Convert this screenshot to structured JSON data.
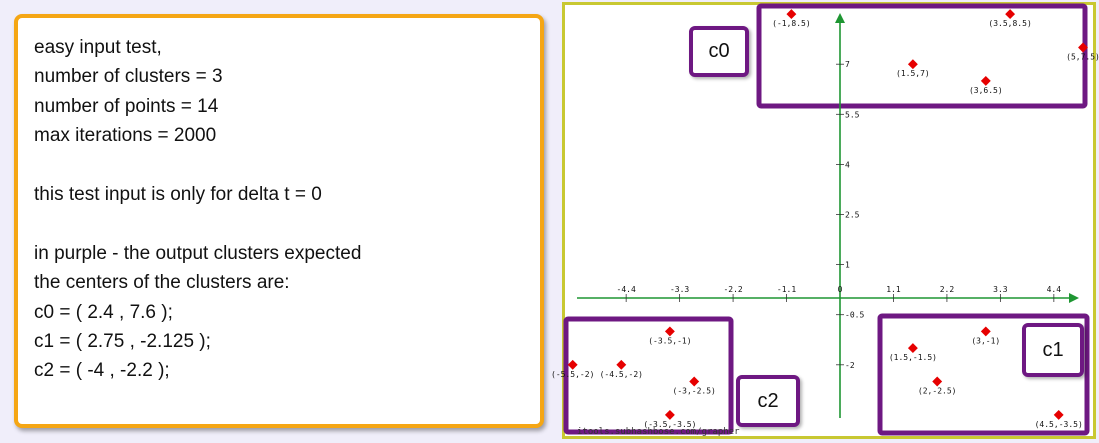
{
  "note": {
    "lines": [
      "easy input test,",
      "number of clusters = 3",
      "number of points = 14",
      "max iterations = 2000",
      "",
      "this test input is only for delta t = 0",
      "",
      "in purple - the output clusters expected",
      "the centers of the clusters are:",
      "c0 = ( 2.4 , 7.6 );",
      "c1 = ( 2.75 , -2.125 );",
      "c2 = ( -4 , -2.2 );"
    ]
  },
  "colors": {
    "note_border": "#f5a614",
    "plot_border": "#c8c832",
    "axis": "#1e9632",
    "point": "#e60000",
    "cluster_box": "#6e1882"
  },
  "chart_data": {
    "type": "scatter",
    "x_ticks": [
      "-4.4",
      "-3.3",
      "-2.2",
      "-1.1",
      "0",
      "1.1",
      "2.2",
      "3.3",
      "4.4"
    ],
    "x_tick_values": [
      -4.4,
      -3.3,
      -2.2,
      -1.1,
      0,
      1.1,
      2.2,
      3.3,
      4.4
    ],
    "y_ticks": [
      "7",
      "5.5",
      "4",
      "2.5",
      "1",
      "-0.5",
      "-2"
    ],
    "y_tick_values": [
      7,
      5.5,
      4,
      2.5,
      1,
      -0.5,
      -2
    ],
    "points": [
      {
        "x": -1,
        "y": 8.5,
        "label": "(-1,8.5)"
      },
      {
        "x": 3.5,
        "y": 8.5,
        "label": "(3.5,8.5)"
      },
      {
        "x": 5,
        "y": 7.5,
        "label": "(5,7.5)"
      },
      {
        "x": 1.5,
        "y": 7,
        "label": "(1.5,7)"
      },
      {
        "x": 3,
        "y": 6.5,
        "label": "(3,6.5)"
      },
      {
        "x": -3.5,
        "y": -1,
        "label": "(-3.5,-1)"
      },
      {
        "x": -5.5,
        "y": -2,
        "label": "(-5.5,-2)"
      },
      {
        "x": -4.5,
        "y": -2,
        "label": "(-4.5,-2)"
      },
      {
        "x": -3,
        "y": -2.5,
        "label": "(-3,-2.5)"
      },
      {
        "x": -3.5,
        "y": -3.5,
        "label": "(-3.5,-3.5)"
      },
      {
        "x": 3,
        "y": -1,
        "label": "(3,-1)"
      },
      {
        "x": 1.5,
        "y": -1.5,
        "label": "(1.5,-1.5)"
      },
      {
        "x": 2,
        "y": -2.5,
        "label": "(2,-2.5)"
      },
      {
        "x": 4.5,
        "y": -3.5,
        "label": "(4.5,-3.5)"
      }
    ],
    "clusters": [
      {
        "name": "c0",
        "label": "c0"
      },
      {
        "name": "c1",
        "label": "c1"
      },
      {
        "name": "c2",
        "label": "c2"
      }
    ],
    "watermark": "itools.subhashbose.com/grapher"
  }
}
